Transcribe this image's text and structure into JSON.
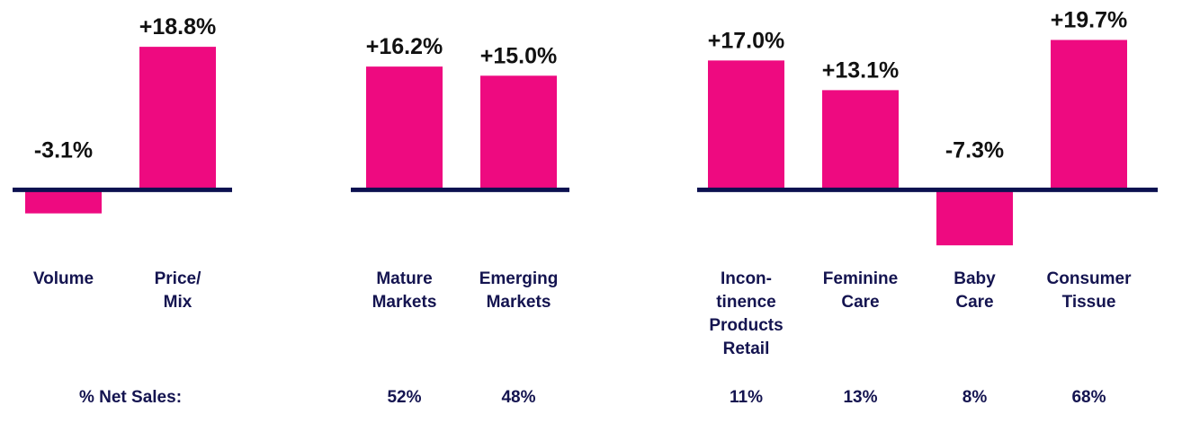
{
  "net_sales_label": "% Net Sales:",
  "chart_data": [
    {
      "type": "bar",
      "color": "#ee0a80",
      "ylim": [
        -12,
        22
      ],
      "categories": [
        [
          "Volume"
        ],
        [
          "Price/",
          "Mix"
        ]
      ],
      "values": [
        -3.1,
        18.8
      ],
      "value_labels": [
        "-3.1%",
        "+18.8%"
      ],
      "net_sales": []
    },
    {
      "type": "bar",
      "color": "#ee0a80",
      "ylim": [
        -12,
        22
      ],
      "categories": [
        [
          "Mature",
          "Markets"
        ],
        [
          "Emerging",
          "Markets"
        ]
      ],
      "values": [
        16.2,
        15.0
      ],
      "value_labels": [
        "+16.2%",
        "+15.0%"
      ],
      "net_sales": [
        "52%",
        "48%"
      ]
    },
    {
      "type": "bar",
      "color": "#ee0a80",
      "ylim": [
        -12,
        22
      ],
      "categories": [
        [
          "Incon-",
          "tinence",
          "Products",
          "Retail"
        ],
        [
          "Feminine",
          "Care"
        ],
        [
          "Baby",
          "Care"
        ],
        [
          "Consumer",
          "Tissue"
        ]
      ],
      "values": [
        17.0,
        13.1,
        -7.3,
        19.7
      ],
      "value_labels": [
        "+17.0%",
        "+13.1%",
        "-7.3%",
        "+19.7%"
      ],
      "net_sales": [
        "11%",
        "13%",
        "8%",
        "68%"
      ]
    }
  ]
}
